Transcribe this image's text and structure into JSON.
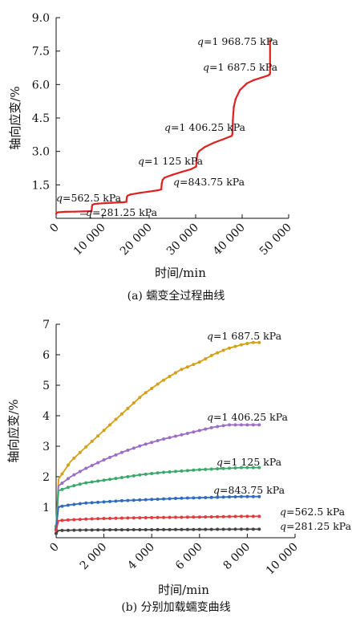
{
  "charts_meta": {
    "panel_a_caption": "(a) 蠕变全过程曲线",
    "panel_b_caption": "(b) 分别加载蠕变曲线"
  },
  "chart_data": [
    {
      "type": "line",
      "xlabel": "时间/min",
      "ylabel": "轴向应变/%",
      "xlim": [
        0,
        50000
      ],
      "ylim": [
        0,
        9
      ],
      "xticks": [
        "0",
        "10 000",
        "20 000",
        "30 000",
        "40 000",
        "50 000"
      ],
      "yticks": [
        "1.5",
        "3.0",
        "4.5",
        "6.0",
        "7.5",
        "9.0"
      ],
      "ytick_values": [
        1.5,
        3.0,
        4.5,
        6.0,
        7.5,
        9.0
      ],
      "xtick_values": [
        0,
        10000,
        20000,
        30000,
        40000,
        50000
      ],
      "color": "#e02020",
      "series": [
        {
          "x": [
            0,
            100,
            500,
            2000,
            4000,
            6000,
            7600,
            7700,
            7800,
            8200,
            9000,
            10500,
            12000,
            14500,
            15100,
            15200,
            15400,
            16000,
            18000,
            20000,
            22000,
            22600,
            22700,
            22900,
            23300,
            25000,
            27000,
            29000,
            30100,
            30200,
            30400,
            30800,
            32000,
            34000,
            36000,
            37800,
            37900,
            38000,
            38200,
            38600,
            39500,
            41000,
            42500,
            44000,
            45500,
            45900,
            46000,
            46000
          ],
          "y": [
            0.2,
            0.25,
            0.27,
            0.29,
            0.3,
            0.31,
            0.32,
            0.52,
            0.6,
            0.64,
            0.66,
            0.68,
            0.7,
            0.72,
            0.74,
            0.95,
            1.02,
            1.07,
            1.14,
            1.2,
            1.26,
            1.3,
            1.55,
            1.72,
            1.82,
            1.95,
            2.08,
            2.2,
            2.32,
            2.65,
            2.9,
            3.02,
            3.2,
            3.4,
            3.55,
            3.7,
            3.78,
            4.4,
            5.0,
            5.35,
            5.75,
            6.05,
            6.2,
            6.3,
            6.4,
            6.45,
            6.5,
            8.0
          ]
        }
      ],
      "annotations": [
        {
          "prefix": "q",
          "text": "=1 968.75 kPa",
          "x": 46000,
          "y": 8.0
        },
        {
          "prefix": "q",
          "text": "=1 687.5 kPa",
          "x": 46000,
          "y": 6.5
        },
        {
          "prefix": "q",
          "text": "=1 406.25 kPa",
          "x": 38000,
          "y": 3.8
        },
        {
          "prefix": "q",
          "text": "=1 125 kPa",
          "x": 30200,
          "y": 2.35
        },
        {
          "prefix": "q",
          "text": "=843.75 kPa",
          "x": 22700,
          "y": 1.3
        },
        {
          "prefix": "q",
          "text": "=562.5 kPa",
          "x": 7700,
          "y": 0.62
        },
        {
          "prefix": "q",
          "text": "=281.25 kPa",
          "x": 7600,
          "y": 0.3
        }
      ]
    },
    {
      "type": "line",
      "xlabel": "时间/min",
      "ylabel": "轴向应变/%",
      "xlim": [
        0,
        10000
      ],
      "ylim": [
        0,
        7
      ],
      "xticks": [
        "0",
        "2 000",
        "4 000",
        "6 000",
        "8 000",
        "10 000"
      ],
      "xtick_values": [
        0,
        2000,
        4000,
        6000,
        8000,
        10000
      ],
      "yticks": [
        "1",
        "2",
        "3",
        "4",
        "5",
        "6",
        "7"
      ],
      "ytick_values": [
        1,
        2,
        3,
        4,
        5,
        6,
        7
      ],
      "series": [
        {
          "color": "#d4a017",
          "final": 6.4,
          "shape": [
            0.06,
            0.3,
            0.39,
            0.46,
            0.55,
            0.64,
            0.73,
            0.8,
            0.86,
            0.9,
            0.94,
            0.97,
            0.99,
            1.0,
            1.0
          ]
        },
        {
          "color": "#9b6dc6",
          "final": 3.7,
          "shape": [
            0.1,
            0.46,
            0.54,
            0.61,
            0.69,
            0.76,
            0.82,
            0.87,
            0.91,
            0.95,
            0.98,
            1.0,
            1.0,
            1.0,
            1.0
          ]
        },
        {
          "color": "#3aa86b",
          "final": 2.3,
          "shape": [
            0.15,
            0.67,
            0.73,
            0.78,
            0.82,
            0.86,
            0.9,
            0.93,
            0.95,
            0.97,
            0.98,
            0.99,
            1.0,
            1.0,
            1.0
          ]
        },
        {
          "color": "#2d6cc0",
          "final": 1.35,
          "shape": [
            0.2,
            0.75,
            0.8,
            0.84,
            0.87,
            0.9,
            0.92,
            0.94,
            0.96,
            0.97,
            0.98,
            0.99,
            1.0,
            1.0,
            1.0
          ]
        },
        {
          "color": "#e03c3c",
          "final": 0.7,
          "shape": [
            0.35,
            0.8,
            0.84,
            0.87,
            0.9,
            0.92,
            0.94,
            0.95,
            0.96,
            0.97,
            0.98,
            0.99,
            1.0,
            1.0,
            1.0
          ]
        },
        {
          "color": "#444444",
          "final": 0.28,
          "shape": [
            0.5,
            0.85,
            0.88,
            0.9,
            0.92,
            0.93,
            0.94,
            0.95,
            0.96,
            0.97,
            0.98,
            0.99,
            1.0,
            1.0,
            1.0
          ]
        }
      ],
      "shape_x": [
        0,
        100,
        600,
        1200,
        2000,
        2800,
        3600,
        4400,
        5200,
        6000,
        6600,
        7200,
        7800,
        8200,
        8500
      ],
      "annotations": [
        {
          "prefix": "q",
          "text": "=1 687.5 kPa"
        },
        {
          "prefix": "q",
          "text": "=1 406.25 kPa"
        },
        {
          "prefix": "q",
          "text": "=1 125 kPa"
        },
        {
          "prefix": "q",
          "text": "=843.75 kPa"
        },
        {
          "prefix": "q",
          "text": "=562.5 kPa"
        },
        {
          "prefix": "q",
          "text": "=281.25 kPa"
        }
      ]
    }
  ]
}
